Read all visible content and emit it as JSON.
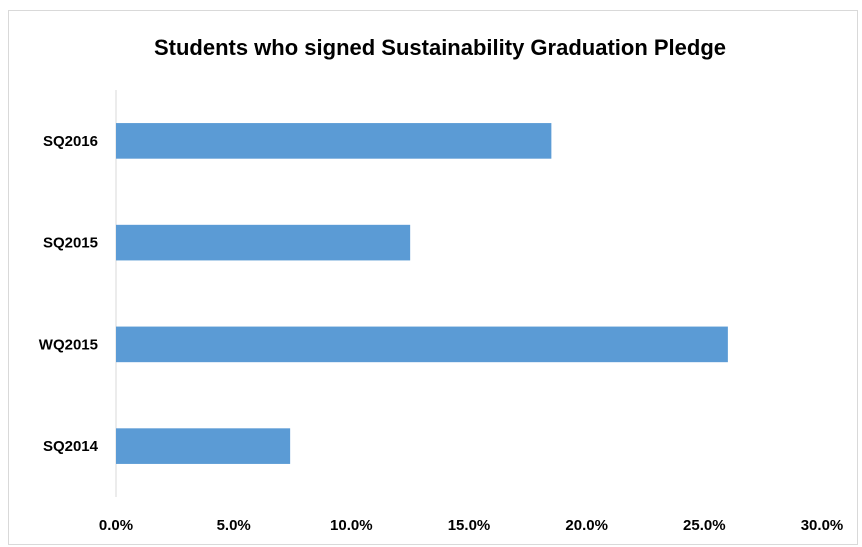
{
  "chart_data": {
    "type": "bar",
    "orientation": "horizontal",
    "title": "Students who signed Sustainability Graduation Pledge",
    "categories": [
      "SQ2016",
      "SQ2015",
      "WQ2015",
      "SQ2014"
    ],
    "values": [
      18.5,
      12.5,
      26.0,
      7.4
    ],
    "value_unit": "%",
    "xlim": [
      0,
      30
    ],
    "x_ticks": [
      "0.0%",
      "5.0%",
      "10.0%",
      "15.0%",
      "20.0%",
      "25.0%",
      "30.0%"
    ],
    "bar_color": "#5b9bd5",
    "grid": false,
    "legend": "none"
  }
}
